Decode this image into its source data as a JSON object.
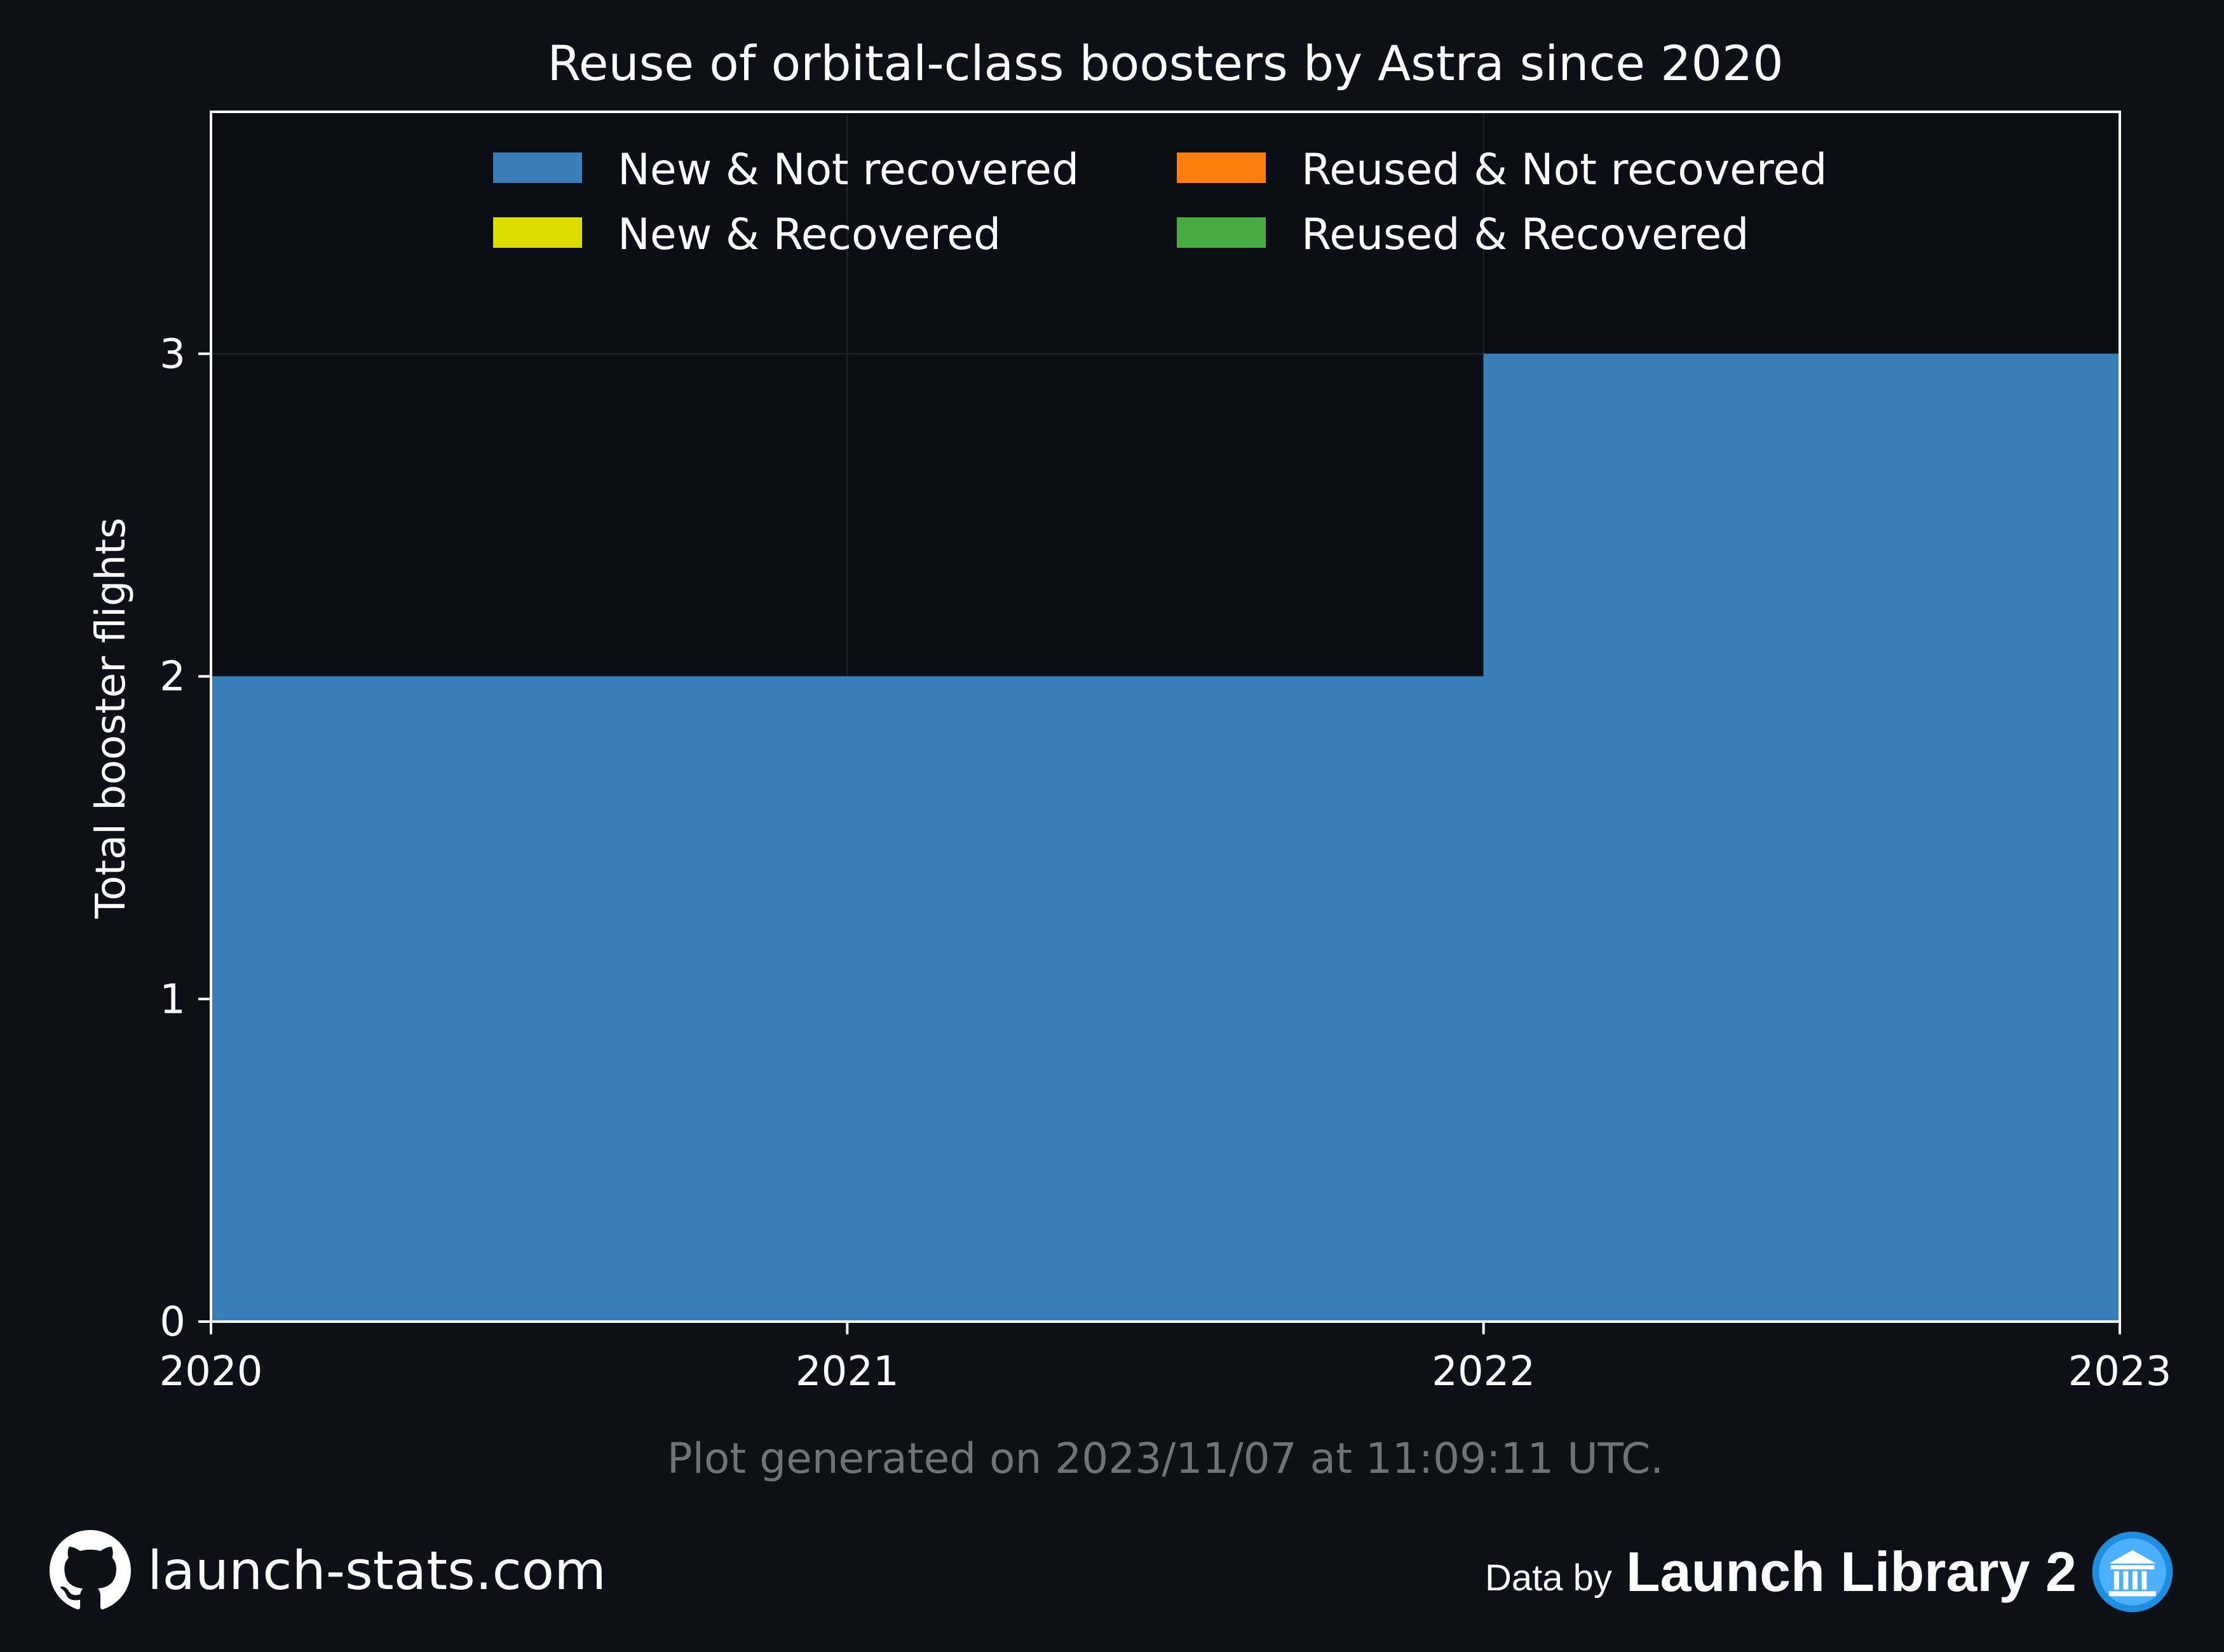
{
  "chart_data": {
    "type": "area",
    "title": "Reuse of orbital-class boosters by Astra since 2020",
    "ylabel": "Total booster flights",
    "xlabel": "",
    "x": [
      2020,
      2021,
      2022,
      2023
    ],
    "x_ticks": [
      "2020",
      "2021",
      "2022",
      "2023"
    ],
    "y_ticks": [
      "0",
      "1",
      "2",
      "3"
    ],
    "xlim": [
      2020,
      2023
    ],
    "ylim": [
      0,
      3.75
    ],
    "step": "post",
    "grid": true,
    "legend_placement": "top-center",
    "series": [
      {
        "name": "New & Not recovered",
        "color": "#3a7eb9",
        "values": [
          2,
          2,
          3,
          3
        ]
      },
      {
        "name": "New & Recovered",
        "color": "#dddd00",
        "values": [
          0,
          0,
          0,
          0
        ]
      },
      {
        "name": "Reused & Not recovered",
        "color": "#ff7f0e",
        "values": [
          0,
          0,
          0,
          0
        ]
      },
      {
        "name": "Reused & Recovered",
        "color": "#4aaa44",
        "values": [
          0,
          0,
          0,
          0
        ]
      }
    ],
    "legend_order": [
      0,
      2,
      1,
      3
    ]
  },
  "footer": {
    "generated_note": "Plot generated on 2023/11/07 at 11:09:11 UTC.",
    "site": "launch-stats.com",
    "data_by": "Data by",
    "data_source": "Launch Library 2"
  },
  "icons": {
    "site_icon": "github-icon",
    "source_icon": "launch-library-logo-icon"
  },
  "colors": {
    "background": "#0d1017",
    "grid": "#1e232c",
    "note_text": "#6f7278"
  }
}
